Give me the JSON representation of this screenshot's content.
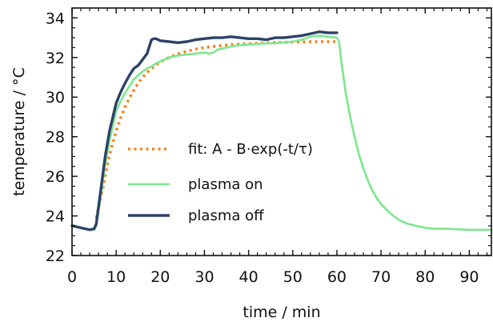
{
  "chart_data": {
    "type": "line",
    "xlabel": "time / min",
    "ylabel": "temperature / °C",
    "xlim": [
      0,
      95
    ],
    "ylim": [
      22,
      34.5
    ],
    "x_ticks": [
      0,
      10,
      20,
      30,
      40,
      50,
      60,
      70,
      80,
      90
    ],
    "y_ticks": [
      22,
      24,
      26,
      28,
      30,
      32,
      34
    ],
    "x_minor_step": 2,
    "y_minor_step": 0.5,
    "grid": false,
    "legend_position": "center-left",
    "series": [
      {
        "name": "fit: A - B·exp(-t/τ)",
        "style": "dotted",
        "color": "#f5821f",
        "x": [
          5.5,
          7,
          8,
          9,
          10,
          11,
          12,
          13,
          14,
          15,
          16,
          17,
          18,
          19,
          20,
          22,
          24,
          26,
          28,
          30,
          33,
          36,
          40,
          45,
          50,
          55,
          60
        ],
        "y": [
          23.9,
          25.4,
          26.6,
          27.5,
          28.3,
          28.95,
          29.5,
          29.95,
          30.35,
          30.7,
          31.0,
          31.25,
          31.45,
          31.62,
          31.78,
          32.0,
          32.18,
          32.32,
          32.42,
          32.5,
          32.58,
          32.65,
          32.7,
          32.75,
          32.78,
          32.8,
          32.8
        ]
      },
      {
        "name": "plasma on",
        "style": "solid",
        "color": "#7ae88d",
        "x": [
          0,
          2,
          4,
          5,
          5.5,
          6.5,
          7.5,
          8.5,
          10,
          11,
          12,
          13,
          14,
          15,
          16,
          17,
          18,
          19,
          20,
          22,
          24,
          26,
          28,
          30,
          31,
          32,
          33,
          35,
          37,
          40,
          43,
          46,
          50,
          52,
          54,
          56,
          58,
          60,
          60.5,
          61,
          62,
          63,
          64,
          65,
          66,
          67,
          68,
          69,
          70,
          72,
          74,
          76,
          78,
          80,
          82,
          85,
          88,
          90,
          95
        ],
        "y": [
          23.55,
          23.4,
          23.3,
          23.3,
          23.5,
          25.0,
          26.6,
          27.8,
          29.3,
          29.8,
          30.2,
          30.55,
          30.9,
          31.1,
          31.3,
          31.45,
          31.55,
          31.7,
          31.8,
          32.0,
          32.1,
          32.15,
          32.2,
          32.25,
          32.2,
          32.25,
          32.4,
          32.5,
          32.6,
          32.65,
          32.7,
          32.72,
          32.8,
          32.9,
          33.05,
          33.1,
          33.05,
          33.0,
          32.8,
          31.8,
          30.2,
          29.0,
          28.0,
          27.1,
          26.4,
          25.8,
          25.3,
          24.9,
          24.6,
          24.15,
          23.8,
          23.6,
          23.5,
          23.4,
          23.35,
          23.35,
          23.32,
          23.3,
          23.3
        ]
      },
      {
        "name": "plasma off",
        "style": "solid",
        "color": "#2c4269",
        "x": [
          0,
          2,
          4,
          5,
          5.5,
          6.5,
          7.5,
          8.5,
          10,
          11,
          12,
          13,
          14,
          15,
          16,
          17,
          17.5,
          18,
          18.5,
          19,
          20,
          22,
          24,
          26,
          28,
          30,
          32,
          34,
          36,
          38,
          40,
          42,
          44,
          46,
          48,
          50,
          52,
          54,
          56,
          58,
          60
        ],
        "y": [
          23.5,
          23.4,
          23.3,
          23.35,
          23.6,
          25.3,
          27.0,
          28.3,
          29.7,
          30.25,
          30.7,
          31.1,
          31.45,
          31.6,
          31.9,
          32.2,
          32.55,
          32.9,
          32.95,
          32.95,
          32.85,
          32.8,
          32.75,
          32.8,
          32.9,
          32.95,
          33.0,
          33.0,
          33.05,
          33.0,
          32.95,
          32.95,
          32.9,
          33.0,
          33.0,
          33.05,
          33.1,
          33.2,
          33.3,
          33.25,
          33.25
        ]
      }
    ]
  }
}
